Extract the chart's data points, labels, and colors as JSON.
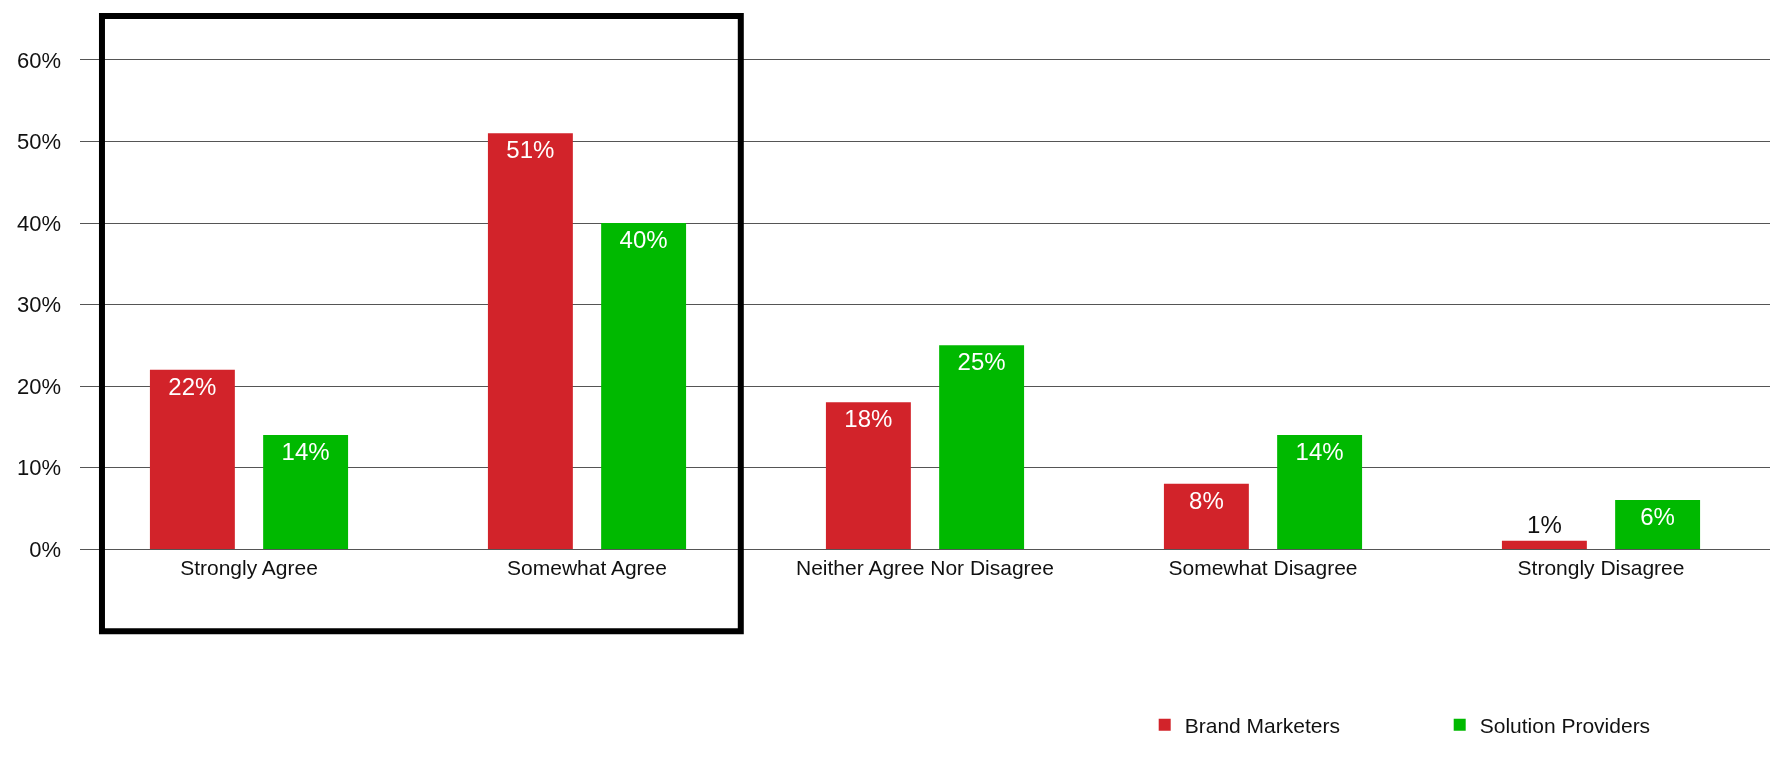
{
  "chart_data": {
    "type": "bar",
    "categories": [
      "Strongly Agree",
      "Somewhat Agree",
      "Neither Agree Nor Disagree",
      "Somewhat Disagree",
      "Strongly Disagree"
    ],
    "series": [
      {
        "name": "Brand Marketers",
        "color": "#d2232a",
        "values": [
          22,
          51,
          18,
          8,
          1
        ],
        "value_labels": [
          "22%",
          "51%",
          "18%",
          "8%",
          "1%"
        ]
      },
      {
        "name": "Solution Providers",
        "color": "#00b900",
        "values": [
          14,
          40,
          25,
          14,
          6
        ],
        "value_labels": [
          "14%",
          "40%",
          "25%",
          "14%",
          "6%"
        ]
      }
    ],
    "ylim": [
      0,
      60
    ],
    "yticks": [
      {
        "value": 0,
        "label": "0%"
      },
      {
        "value": 10,
        "label": "10%"
      },
      {
        "value": 20,
        "label": "20%"
      },
      {
        "value": 30,
        "label": "30%"
      },
      {
        "value": 40,
        "label": "40%"
      },
      {
        "value": 50,
        "label": "50%"
      },
      {
        "value": 60,
        "label": "60%"
      }
    ],
    "grid": "y",
    "legend": "bottom right"
  }
}
